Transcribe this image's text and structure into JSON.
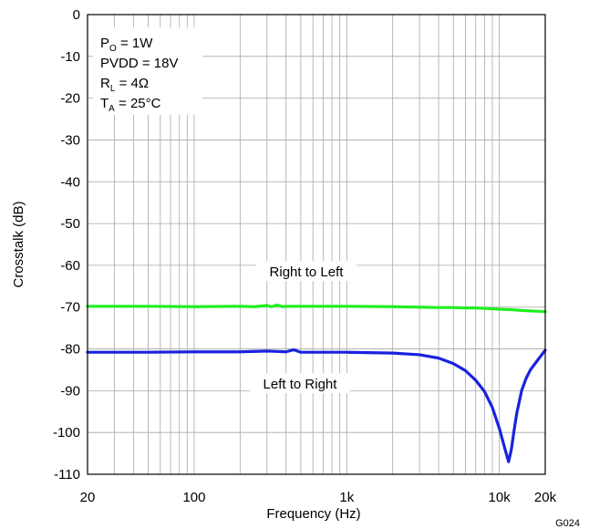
{
  "chart_data": {
    "type": "line",
    "title": "",
    "xlabel": "Frequency (Hz)",
    "ylabel": "Crosstalk (dB)",
    "xscale": "log",
    "xlim": [
      20,
      20000
    ],
    "ylim": [
      -110,
      0
    ],
    "grid": true,
    "x_tick_labels": [
      "20",
      "100",
      "1k",
      "10k",
      "20k"
    ],
    "x_tick_values": [
      20,
      100,
      1000,
      10000,
      20000
    ],
    "y_ticks": [
      0,
      -10,
      -20,
      -30,
      -40,
      -50,
      -60,
      -70,
      -80,
      -90,
      -100,
      -110
    ],
    "conditions": [
      {
        "base": "P",
        "sub": "O",
        "value": " = 1W"
      },
      {
        "base": "PVDD = 18V",
        "sub": "",
        "value": ""
      },
      {
        "base": "R",
        "sub": "L",
        "value": " = 4Ω"
      },
      {
        "base": "T",
        "sub": "A",
        "value": " = 25°C"
      }
    ],
    "figure_code": "G024",
    "series": [
      {
        "name": "Right to Left",
        "color": "#22ee22",
        "x": [
          20,
          50,
          100,
          200,
          250,
          300,
          320,
          350,
          380,
          400,
          450,
          500,
          700,
          1000,
          2000,
          3000,
          4000,
          5000,
          6000,
          7000,
          8000,
          9000,
          10000,
          12000,
          14000,
          16000,
          18000,
          20000
        ],
        "y": [
          -69.8,
          -69.8,
          -69.9,
          -69.8,
          -69.9,
          -69.6,
          -69.9,
          -69.5,
          -69.9,
          -69.8,
          -69.8,
          -69.8,
          -69.8,
          -69.8,
          -69.9,
          -70.0,
          -70.1,
          -70.1,
          -70.2,
          -70.2,
          -70.3,
          -70.4,
          -70.5,
          -70.6,
          -70.8,
          -70.9,
          -71.0,
          -71.1
        ]
      },
      {
        "name": "Left to Right",
        "color": "#1a22dd",
        "x": [
          20,
          50,
          100,
          200,
          300,
          350,
          400,
          450,
          500,
          1000,
          2000,
          3000,
          4000,
          5000,
          6000,
          7000,
          8000,
          9000,
          10000,
          11000,
          11500,
          12000,
          12500,
          13000,
          14000,
          15000,
          16000,
          18000,
          20000
        ],
        "y": [
          -80.8,
          -80.8,
          -80.7,
          -80.7,
          -80.5,
          -80.6,
          -80.7,
          -80.2,
          -80.8,
          -80.8,
          -81.0,
          -81.4,
          -82.2,
          -83.5,
          -85.2,
          -87.5,
          -90.2,
          -94.0,
          -99.0,
          -104.5,
          -107.0,
          -104.0,
          -99.5,
          -95.5,
          -90.0,
          -87.0,
          -85.0,
          -82.5,
          -80.3
        ]
      }
    ]
  }
}
